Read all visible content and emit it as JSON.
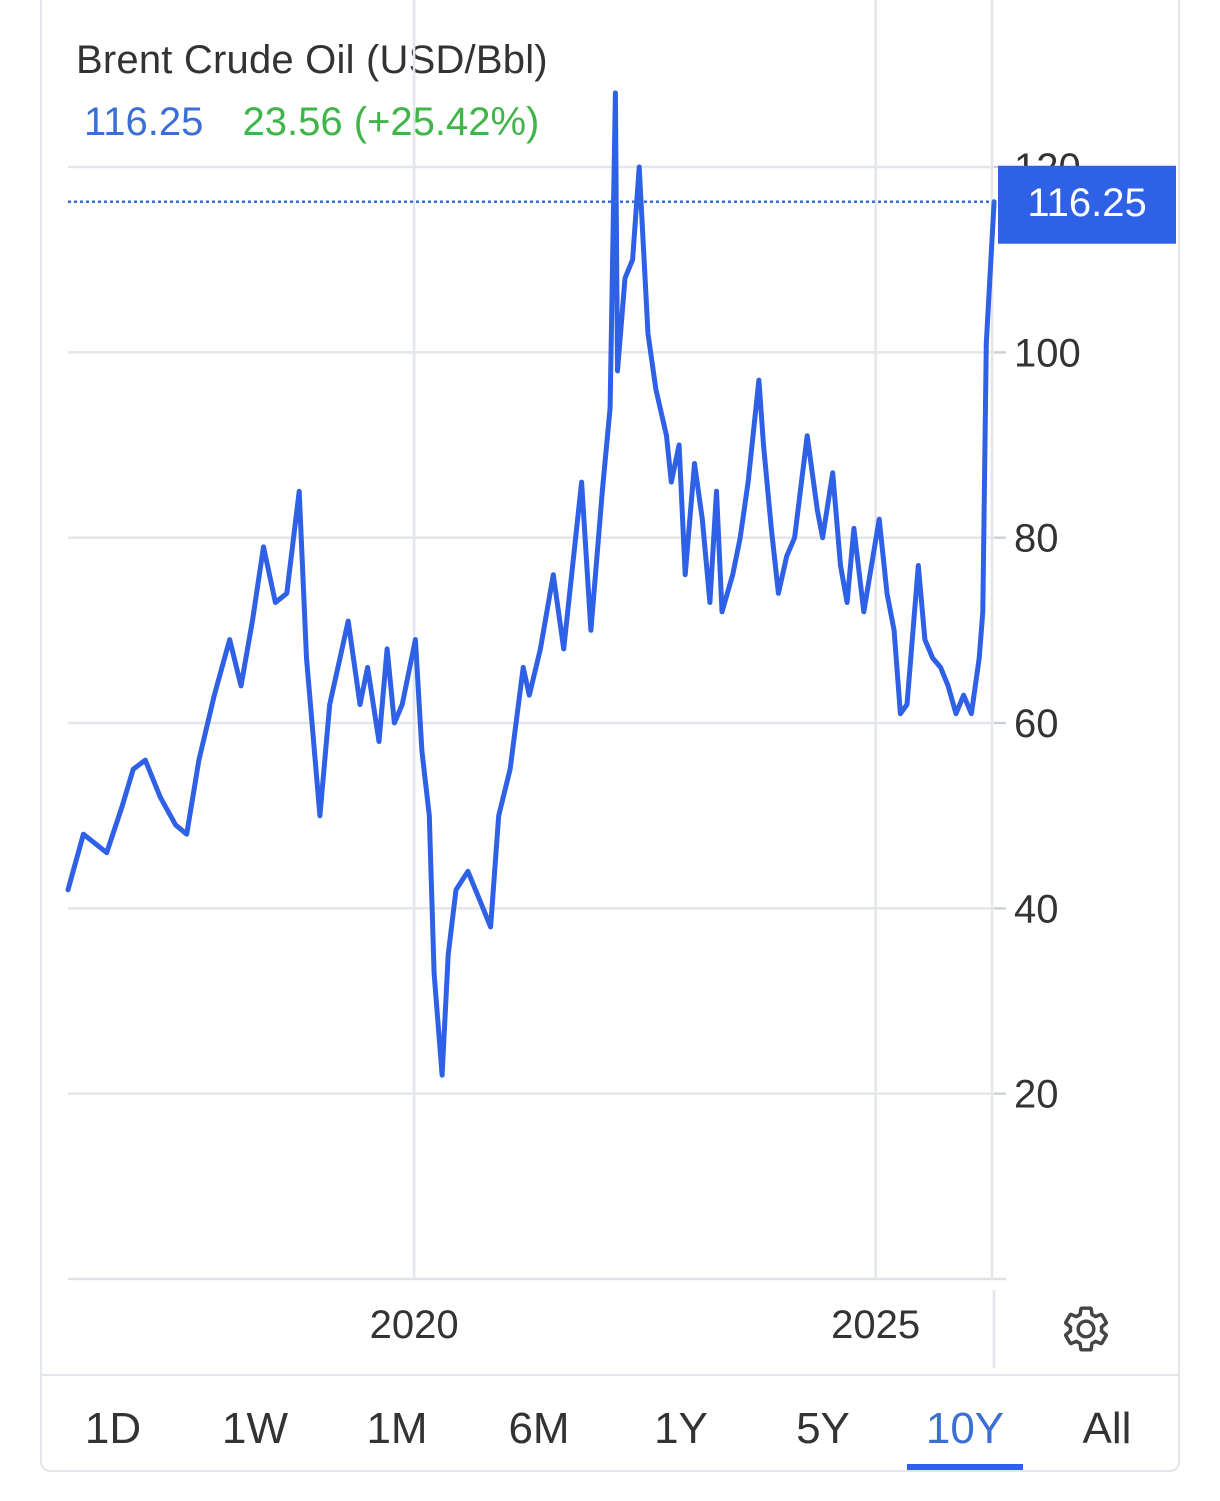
{
  "header": {
    "title": "Brent Crude Oil (USD/Bbl)",
    "price": "116.25",
    "change": "23.56 (+25.42%)"
  },
  "colors": {
    "line": "#2f61e6",
    "price": "#3b6fd6",
    "change": "#3fb54a",
    "grid": "#e3e6ea",
    "text": "#333333"
  },
  "price_tag": "116.25",
  "settings_icon": "gear-icon",
  "tabs": [
    {
      "label": "1D",
      "active": false
    },
    {
      "label": "1W",
      "active": false
    },
    {
      "label": "1M",
      "active": false
    },
    {
      "label": "6M",
      "active": false
    },
    {
      "label": "1Y",
      "active": false
    },
    {
      "label": "5Y",
      "active": false
    },
    {
      "label": "10Y",
      "active": true
    },
    {
      "label": "All",
      "active": false
    }
  ],
  "chart_data": {
    "type": "line",
    "title": "Brent Crude Oil (USD/Bbl)",
    "xlabel": "",
    "ylabel": "",
    "ylim": [
      0,
      120
    ],
    "xlim": [
      "2016-04-01",
      "2026-06-01"
    ],
    "y_ticks": [
      20,
      40,
      60,
      80,
      100,
      120
    ],
    "x_ticks": [
      "2020",
      "2025"
    ],
    "x_tick_dates": [
      "2020-01-01",
      "2025-01-01"
    ],
    "y_axis_side": "right",
    "grid": true,
    "last_value": 116.25,
    "series": [
      {
        "x": [
          "2016-04-01",
          "2016-06-01",
          "2016-09-01",
          "2016-11-01",
          "2016-12-15",
          "2017-02-01",
          "2017-04-01",
          "2017-06-01",
          "2017-07-15",
          "2017-09-01",
          "2017-11-01",
          "2018-01-01",
          "2018-02-15",
          "2018-04-01",
          "2018-05-15",
          "2018-07-01",
          "2018-08-15",
          "2018-10-03",
          "2018-11-01",
          "2018-12-24",
          "2019-02-01",
          "2019-04-15",
          "2019-06-01",
          "2019-07-01",
          "2019-08-15",
          "2019-09-16",
          "2019-10-15",
          "2019-11-15",
          "2020-01-06",
          "2020-02-01",
          "2020-03-01",
          "2020-03-20",
          "2020-04-21",
          "2020-05-15",
          "2020-06-15",
          "2020-08-01",
          "2020-09-15",
          "2020-10-30",
          "2020-12-01",
          "2021-01-15",
          "2021-03-08",
          "2021-04-01",
          "2021-05-15",
          "2021-07-05",
          "2021-08-15",
          "2021-10-25",
          "2021-12-01",
          "2022-01-15",
          "2022-02-15",
          "2022-03-08",
          "2022-03-16",
          "2022-04-15",
          "2022-05-15",
          "2022-06-10",
          "2022-07-15",
          "2022-08-15",
          "2022-09-26",
          "2022-10-15",
          "2022-11-15",
          "2022-12-09",
          "2023-01-15",
          "2023-02-15",
          "2023-03-17",
          "2023-04-12",
          "2023-05-04",
          "2023-06-15",
          "2023-07-15",
          "2023-08-15",
          "2023-09-27",
          "2023-10-15",
          "2023-11-15",
          "2023-12-13",
          "2024-01-15",
          "2024-02-15",
          "2024-04-05",
          "2024-05-15",
          "2024-06-05",
          "2024-07-15",
          "2024-08-15",
          "2024-09-10",
          "2024-10-07",
          "2024-11-15",
          "2025-01-15",
          "2025-02-15",
          "2025-03-15",
          "2025-04-09",
          "2025-05-05",
          "2025-06-19",
          "2025-07-15",
          "2025-08-15",
          "2025-09-15",
          "2025-10-15",
          "2025-11-15",
          "2025-12-15",
          "2026-01-15",
          "2026-02-15",
          "2026-03-01",
          "2026-03-15",
          "2026-04-15"
        ],
        "values": [
          42,
          48,
          46,
          51,
          55,
          56,
          52,
          49,
          48,
          56,
          63,
          69,
          64,
          71,
          79,
          73,
          74,
          85,
          67,
          50,
          62,
          71,
          62,
          66,
          58,
          68,
          60,
          62,
          69,
          57,
          50,
          33,
          22,
          35,
          42,
          44,
          41,
          38,
          50,
          55,
          66,
          63,
          68,
          76,
          68,
          86,
          70,
          85,
          94,
          128,
          98,
          108,
          110,
          120,
          102,
          96,
          91,
          86,
          90,
          76,
          88,
          82,
          73,
          85,
          72,
          76,
          80,
          86,
          97,
          90,
          81,
          74,
          78,
          80,
          91,
          83,
          80,
          87,
          77,
          73,
          81,
          72,
          82,
          74,
          70,
          61,
          62,
          77,
          69,
          67,
          66,
          64,
          61,
          63,
          61,
          67,
          72,
          101,
          116.25
        ]
      }
    ]
  }
}
